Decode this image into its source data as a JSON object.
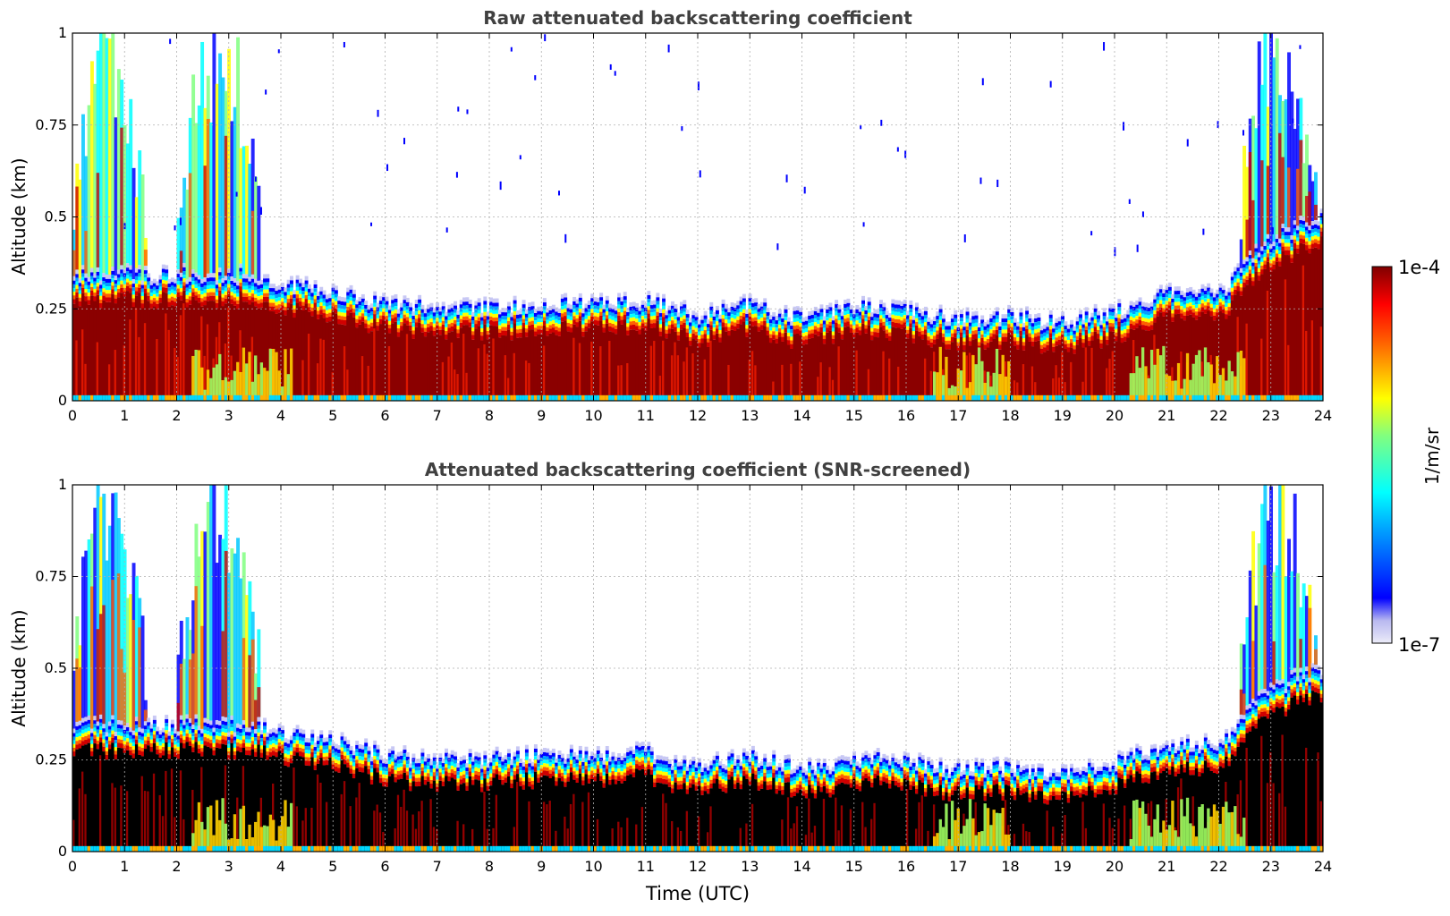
{
  "figure": {
    "xlabel": "Time (UTC)",
    "colorbar": {
      "label": "1/m/sr",
      "max_label": "1e-4",
      "min_label": "1e-7",
      "range": [
        1e-07,
        0.0001
      ],
      "scale": "log",
      "colormap": "jet"
    }
  },
  "chart_data": [
    {
      "type": "heatmap",
      "title": "Raw attenuated backscattering coefficient",
      "xlabel": "",
      "ylabel": "Altitude (km)",
      "xlim": [
        0,
        24
      ],
      "ylim": [
        0,
        1
      ],
      "xticks": [
        "0",
        "1",
        "2",
        "3",
        "4",
        "5",
        "6",
        "7",
        "8",
        "9",
        "10",
        "11",
        "12",
        "13",
        "14",
        "15",
        "16",
        "17",
        "18",
        "19",
        "20",
        "21",
        "22",
        "23",
        "24"
      ],
      "yticks": [
        "0",
        "0.25",
        "0.5",
        "0.75",
        "1"
      ],
      "grid": true,
      "boundary_layer_top_km": {
        "time_utc": [
          0,
          1,
          2,
          3,
          3.5,
          4,
          5,
          6,
          7,
          8,
          9,
          10,
          11,
          12,
          13,
          14,
          15,
          16,
          17,
          18,
          19,
          20,
          21,
          22,
          23,
          23.8
        ],
        "height": [
          0.35,
          0.35,
          0.35,
          0.35,
          0.35,
          0.33,
          0.31,
          0.27,
          0.26,
          0.26,
          0.27,
          0.27,
          0.28,
          0.24,
          0.27,
          0.23,
          0.26,
          0.26,
          0.23,
          0.24,
          0.22,
          0.25,
          0.3,
          0.3,
          0.45,
          0.5
        ]
      },
      "tall_aerosol_plume_periods_utc": [
        [
          0,
          1.4
        ],
        [
          2.0,
          3.6
        ],
        [
          22.4,
          23.9
        ]
      ]
    },
    {
      "type": "heatmap",
      "title": "Attenuated backscattering coefficient (SNR-screened)",
      "xlabel": "Time (UTC)",
      "ylabel": "Altitude (km)",
      "xlim": [
        0,
        24
      ],
      "ylim": [
        0,
        1
      ],
      "xticks": [
        "0",
        "1",
        "2",
        "3",
        "4",
        "5",
        "6",
        "7",
        "8",
        "9",
        "10",
        "11",
        "12",
        "13",
        "14",
        "15",
        "16",
        "17",
        "18",
        "19",
        "20",
        "21",
        "22",
        "23",
        "24"
      ],
      "yticks": [
        "0",
        "0.25",
        "0.5",
        "0.75",
        "1"
      ],
      "grid": true,
      "screened_out_color": "#000000"
    }
  ]
}
